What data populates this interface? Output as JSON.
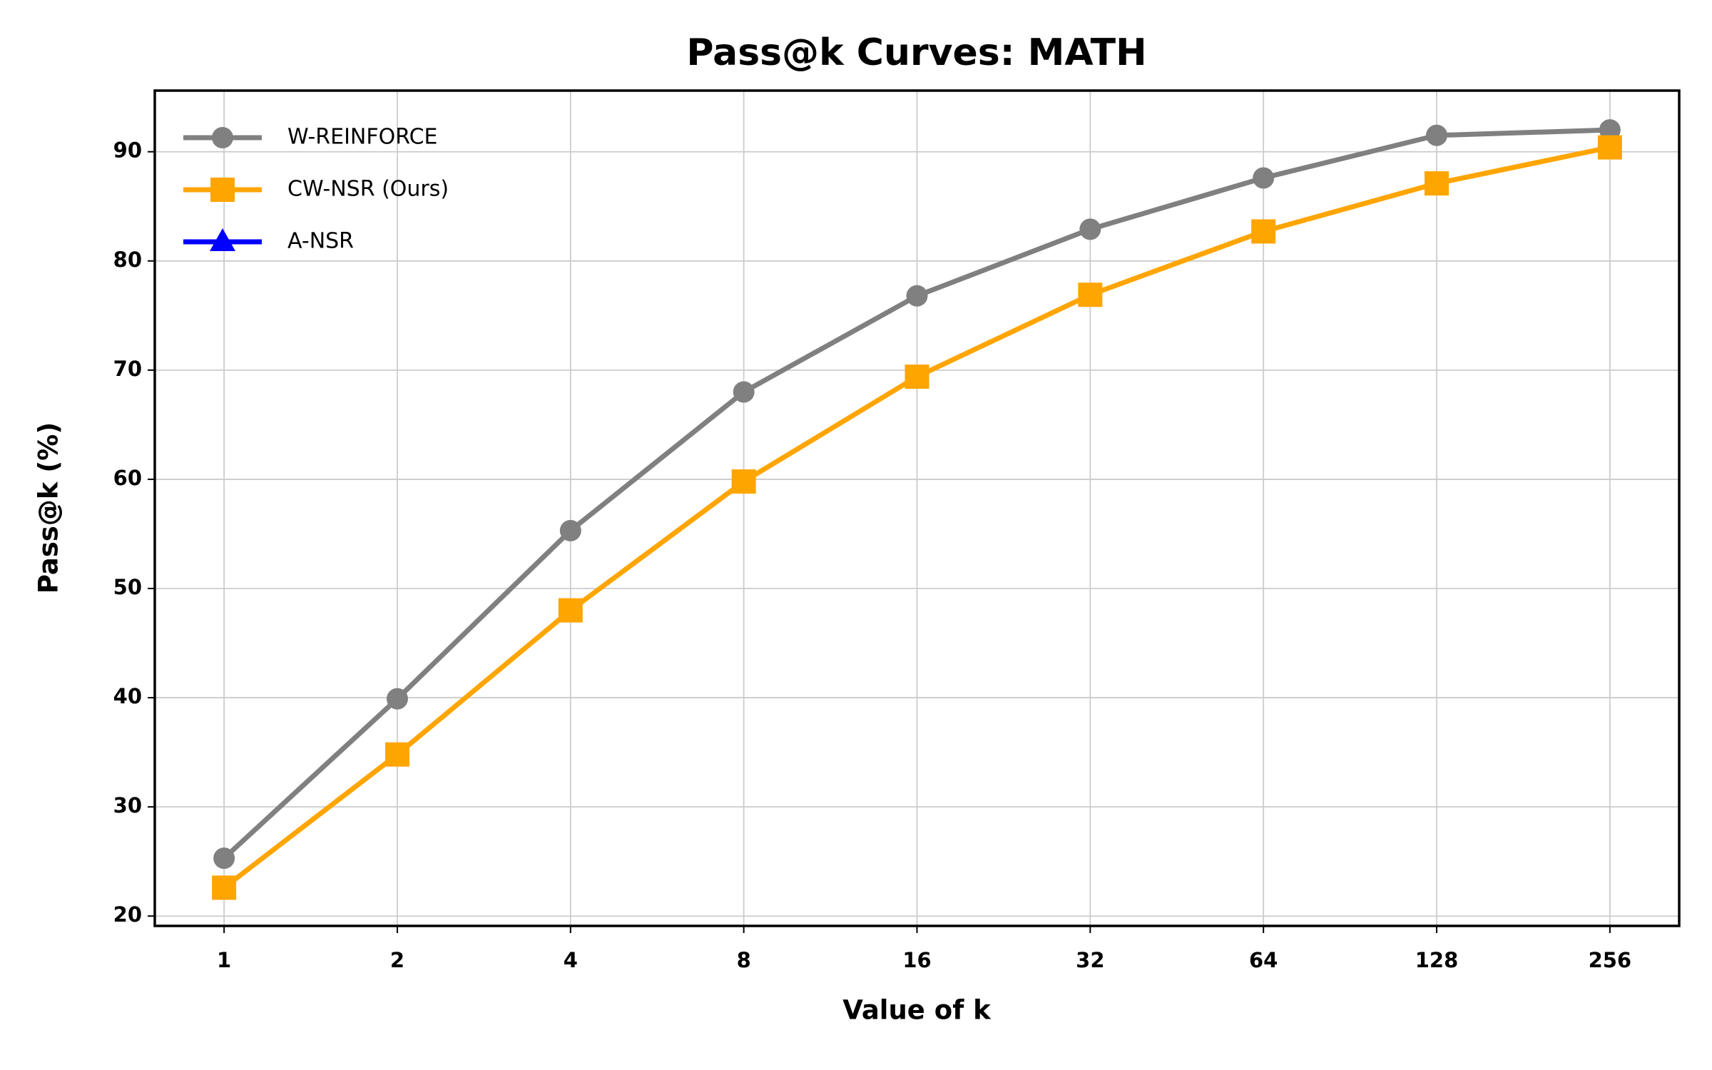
{
  "chart_data": {
    "type": "line",
    "title": "Pass@k Curves: MATH",
    "xlabel": "Value of k",
    "ylabel": "Pass@k (%)",
    "categories": [
      "1",
      "2",
      "4",
      "8",
      "16",
      "32",
      "64",
      "128",
      "256"
    ],
    "series": [
      {
        "name": "W-REINFORCE",
        "color": "#808080",
        "marker": "circle",
        "values": [
          25.3,
          39.9,
          55.3,
          68.0,
          76.8,
          82.9,
          87.6,
          91.5,
          92.0
        ]
      },
      {
        "name": "CW-NSR (Ours)",
        "color": "#ffa500",
        "marker": "square",
        "values": [
          22.6,
          34.8,
          48.0,
          59.8,
          69.4,
          76.9,
          82.7,
          87.1,
          90.4
        ]
      },
      {
        "name": "A-NSR",
        "color": "#0000ff",
        "marker": "triangle",
        "values": [
          null,
          null,
          null,
          null,
          null,
          null,
          null,
          null,
          null
        ]
      }
    ],
    "ylim": [
      19.1,
      95.6
    ],
    "yticks": [
      20,
      30,
      40,
      50,
      60,
      70,
      80,
      90
    ],
    "grid": true,
    "legend": "upper left"
  }
}
